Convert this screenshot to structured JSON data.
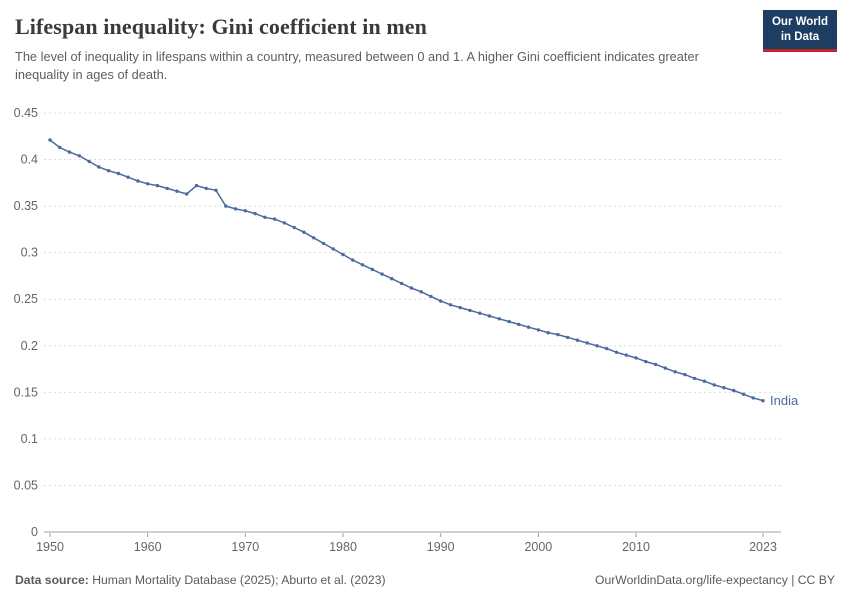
{
  "header": {
    "title": "Lifespan inequality: Gini coefficient in men",
    "subtitle": "The level of inequality in lifespans within a country, measured between 0 and 1. A higher Gini coefficient indicates greater inequality in ages of death.",
    "logo": {
      "line1": "Our World",
      "line2": "in Data"
    }
  },
  "chart_data": {
    "type": "line",
    "title": "Lifespan inequality: Gini coefficient in men",
    "xlabel": "",
    "ylabel": "",
    "xlim": [
      1950,
      2023
    ],
    "ylim": [
      0,
      0.45
    ],
    "grid": "dashed-horizontal",
    "legend_position": "end-of-line-label",
    "x_ticks": [
      1950,
      1960,
      1970,
      1980,
      1990,
      2000,
      2010,
      2023
    ],
    "y_ticks": [
      0,
      0.05,
      0.1,
      0.15,
      0.2,
      0.25,
      0.3,
      0.35,
      0.4,
      0.45
    ],
    "series": [
      {
        "name": "India",
        "color": "#4C6A9C",
        "x": [
          1950,
          1951,
          1952,
          1953,
          1954,
          1955,
          1956,
          1957,
          1958,
          1959,
          1960,
          1961,
          1962,
          1963,
          1964,
          1965,
          1966,
          1967,
          1968,
          1969,
          1970,
          1971,
          1972,
          1973,
          1974,
          1975,
          1976,
          1977,
          1978,
          1979,
          1980,
          1981,
          1982,
          1983,
          1984,
          1985,
          1986,
          1987,
          1988,
          1989,
          1990,
          1991,
          1992,
          1993,
          1994,
          1995,
          1996,
          1997,
          1998,
          1999,
          2000,
          2001,
          2002,
          2003,
          2004,
          2005,
          2006,
          2007,
          2008,
          2009,
          2010,
          2011,
          2012,
          2013,
          2014,
          2015,
          2016,
          2017,
          2018,
          2019,
          2020,
          2021,
          2022,
          2023
        ],
        "values": [
          0.421,
          0.413,
          0.408,
          0.404,
          0.398,
          0.392,
          0.388,
          0.385,
          0.381,
          0.377,
          0.374,
          0.372,
          0.369,
          0.366,
          0.363,
          0.372,
          0.369,
          0.367,
          0.35,
          0.347,
          0.345,
          0.342,
          0.338,
          0.336,
          0.332,
          0.327,
          0.322,
          0.316,
          0.31,
          0.304,
          0.298,
          0.292,
          0.287,
          0.282,
          0.277,
          0.272,
          0.267,
          0.262,
          0.258,
          0.253,
          0.248,
          0.244,
          0.241,
          0.238,
          0.235,
          0.232,
          0.229,
          0.226,
          0.223,
          0.22,
          0.217,
          0.214,
          0.212,
          0.209,
          0.206,
          0.203,
          0.2,
          0.197,
          0.193,
          0.19,
          0.187,
          0.183,
          0.18,
          0.176,
          0.172,
          0.169,
          0.165,
          0.162,
          0.158,
          0.155,
          0.152,
          0.148,
          0.144,
          0.141
        ]
      }
    ]
  },
  "footer": {
    "source_label": "Data source:",
    "source_text": " Human Mortality Database (2025); Aburto et al. (2023)",
    "right_text": "OurWorldinData.org/life-expectancy | CC BY"
  },
  "colors": {
    "line": "#4C6A9C",
    "grid": "#dcdcdc",
    "zero_axis": "#a0a0a0",
    "tick_text": "#666666",
    "title": "#3a3a3a",
    "subtitle": "#5e5e5e",
    "footer": "#5b5b5b",
    "logo_bg": "#1d3d63",
    "logo_accent": "#C0262C"
  }
}
